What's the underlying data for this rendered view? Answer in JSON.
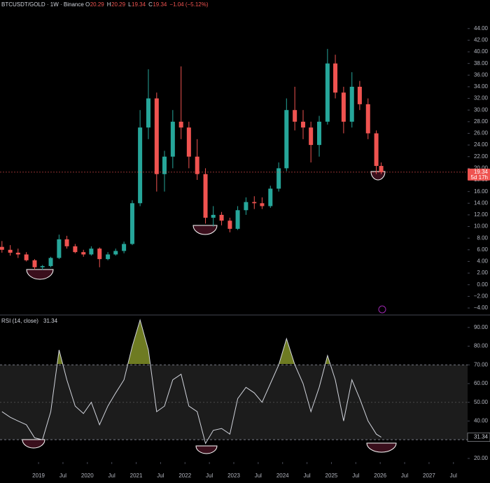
{
  "chart_data": [
    {
      "type": "candlestick",
      "symbol": "BTCUSDT/GOLD · 1W · Binance",
      "quote": [
        {
          "label": "O",
          "value": 20.29
        },
        {
          "label": "H",
          "value": 20.29
        },
        {
          "label": "L",
          "value": 19.34
        },
        {
          "label": "C",
          "value": 19.34
        }
      ],
      "change": "−1.04 (−5.12%)",
      "countdown": "5d 17h",
      "x": [
        2018.25,
        2018.42,
        2018.58,
        2018.75,
        2018.92,
        2019.08,
        2019.25,
        2019.42,
        2019.58,
        2019.75,
        2019.92,
        2020.08,
        2020.25,
        2020.42,
        2020.58,
        2020.75,
        2020.92,
        2021.08,
        2021.25,
        2021.42,
        2021.58,
        2021.75,
        2021.92,
        2022.08,
        2022.25,
        2022.42,
        2022.58,
        2022.75,
        2022.92,
        2023.08,
        2023.25,
        2023.42,
        2023.58,
        2023.75,
        2023.92,
        2024.08,
        2024.25,
        2024.42,
        2024.58,
        2024.75,
        2024.92,
        2025.08,
        2025.25,
        2025.42,
        2025.58,
        2025.75,
        2025.92,
        2026.02
      ],
      "open": [
        6.5,
        6.0,
        5.5,
        5.2,
        4.2,
        3.0,
        3.2,
        4.6,
        7.8,
        6.6,
        5.6,
        5.2,
        6.2,
        4.4,
        5.2,
        5.8,
        7.0,
        14.0,
        27.0,
        32.0,
        19.0,
        22.0,
        28.0,
        27.0,
        22.0,
        19.0,
        11.5,
        12.0,
        11.0,
        9.6,
        12.8,
        14.2,
        14.0,
        13.5,
        16.5,
        20.0,
        30.0,
        28.0,
        27.0,
        24.0,
        28.0,
        38.0,
        33.0,
        28.0,
        34.0,
        31.0,
        26.0,
        20.4
      ],
      "high": [
        7.5,
        6.8,
        6.2,
        5.6,
        4.4,
        3.4,
        4.8,
        8.6,
        8.4,
        7.0,
        6.0,
        6.6,
        6.4,
        5.6,
        6.2,
        7.4,
        14.5,
        30.0,
        37.0,
        33.0,
        23.0,
        30.0,
        37.5,
        28.0,
        25.0,
        20.0,
        13.5,
        12.5,
        11.5,
        13.5,
        15.0,
        15.2,
        15.0,
        17.0,
        21.0,
        32.0,
        34.0,
        30.0,
        28.0,
        29.0,
        40.5,
        39.5,
        34.0,
        36.5,
        35.0,
        32.0,
        26.5,
        21.0
      ],
      "low": [
        5.5,
        5.0,
        4.6,
        4.0,
        2.6,
        2.5,
        3.0,
        4.4,
        6.2,
        5.4,
        4.8,
        5.0,
        3.0,
        4.2,
        5.0,
        5.4,
        6.8,
        13.5,
        25.0,
        16.0,
        16.0,
        20.0,
        25.0,
        20.0,
        18.0,
        10.5,
        10.0,
        10.2,
        9.0,
        9.4,
        12.0,
        13.0,
        13.0,
        13.2,
        16.0,
        19.5,
        26.5,
        25.0,
        21.0,
        22.0,
        27.5,
        32.0,
        26.0,
        27.0,
        30.0,
        25.0,
        19.0,
        19.0
      ],
      "close": [
        6.0,
        5.5,
        5.2,
        4.2,
        3.0,
        3.2,
        4.6,
        7.8,
        6.6,
        5.6,
        5.2,
        6.2,
        4.4,
        5.2,
        5.8,
        7.0,
        14.0,
        27.0,
        32.0,
        19.0,
        22.0,
        28.0,
        27.0,
        22.0,
        19.0,
        11.5,
        12.0,
        11.0,
        9.6,
        12.8,
        14.2,
        14.0,
        13.5,
        16.5,
        20.0,
        30.0,
        28.0,
        27.0,
        24.0,
        28.0,
        38.0,
        33.0,
        28.0,
        34.0,
        31.0,
        26.0,
        20.4,
        19.34
      ],
      "up_color": "#26a69a",
      "down_color": "#ef5350",
      "xlim": [
        2018.21,
        2027.79
      ],
      "ylim": [
        -5.2,
        48.9
      ],
      "yticks": [
        {
          "value": -4,
          "label": "−4.00"
        },
        {
          "value": -2,
          "label": "−2.00"
        },
        {
          "value": 0,
          "label": "0.00"
        },
        {
          "value": 2,
          "label": "2.00"
        },
        {
          "value": 4,
          "label": "4.00"
        },
        {
          "value": 6,
          "label": "6.00"
        },
        {
          "value": 8,
          "label": "8.00"
        },
        {
          "value": 10,
          "label": "10.00"
        },
        {
          "value": 12,
          "label": "12.00"
        },
        {
          "value": 14,
          "label": "14.00"
        },
        {
          "value": 16,
          "label": "16.00"
        },
        {
          "value": 18,
          "label": "18.00"
        },
        {
          "value": 20,
          "label": "20.00"
        },
        {
          "value": 22,
          "label": "22.00"
        },
        {
          "value": 24,
          "label": "24.00"
        },
        {
          "value": 26,
          "label": "26.00"
        },
        {
          "value": 28,
          "label": "28.00"
        },
        {
          "value": 30,
          "label": "30.00"
        },
        {
          "value": 32,
          "label": "32.00"
        },
        {
          "value": 34,
          "label": "34.00"
        },
        {
          "value": 36,
          "label": "36.00"
        },
        {
          "value": 38,
          "label": "38.00"
        },
        {
          "value": 40,
          "label": "40.00"
        },
        {
          "value": 42,
          "label": "42.00"
        },
        {
          "value": 44,
          "label": "44.00"
        }
      ]
    },
    {
      "type": "line",
      "title": "RSI (14, close)",
      "x": [
        2018.25,
        2018.42,
        2018.58,
        2018.75,
        2018.92,
        2019.08,
        2019.25,
        2019.42,
        2019.58,
        2019.75,
        2019.92,
        2020.08,
        2020.25,
        2020.42,
        2020.58,
        2020.75,
        2020.92,
        2021.08,
        2021.25,
        2021.42,
        2021.58,
        2021.75,
        2021.92,
        2022.08,
        2022.25,
        2022.42,
        2022.58,
        2022.75,
        2022.92,
        2023.08,
        2023.25,
        2023.42,
        2023.58,
        2023.75,
        2023.92,
        2024.08,
        2024.25,
        2024.42,
        2024.58,
        2024.75,
        2024.92,
        2025.08,
        2025.25,
        2025.42,
        2025.58,
        2025.75,
        2025.92,
        2026.02
      ],
      "values": [
        45,
        42,
        40,
        38,
        31,
        30,
        45,
        78,
        62,
        48,
        44,
        50,
        38,
        48,
        55,
        62,
        80,
        94,
        78,
        45,
        48,
        62,
        65,
        48,
        45,
        28,
        35,
        36,
        33,
        52,
        58,
        55,
        50,
        60,
        70,
        84,
        70,
        60,
        45,
        58,
        75,
        62,
        40,
        62,
        52,
        40,
        33,
        31.34
      ],
      "color": "#d1d4dc",
      "upper_band": 70,
      "lower_band": 30,
      "xlim": [
        2018.21,
        2027.79
      ],
      "xticks": [
        2019,
        {
          "value": 2019.5,
          "label": "Jul"
        },
        2020,
        {
          "value": 2020.5,
          "label": "Jul"
        },
        2021,
        {
          "value": 2021.5,
          "label": "Jul"
        },
        2022,
        {
          "value": 2022.5,
          "label": "Jul"
        },
        2023,
        {
          "value": 2023.5,
          "label": "Jul"
        },
        2024,
        {
          "value": 2024.5,
          "label": "Jul"
        },
        2025,
        {
          "value": 2025.5,
          "label": "Jul"
        },
        2026,
        {
          "value": 2026.5,
          "label": "Jul"
        },
        2027,
        {
          "value": 2027.5,
          "label": "Jul"
        }
      ],
      "ylim": [
        18.1,
        95.9
      ],
      "yticks": [
        {
          "value": 20,
          "label": "20.00"
        },
        {
          "value": 40,
          "label": "40.00"
        },
        {
          "value": 50,
          "label": "50.00"
        },
        {
          "value": 60,
          "label": "60.00"
        },
        {
          "value": 70,
          "label": "70.00"
        },
        {
          "value": 80,
          "label": "80.00"
        },
        {
          "value": 90,
          "label": "90.00"
        }
      ]
    }
  ]
}
